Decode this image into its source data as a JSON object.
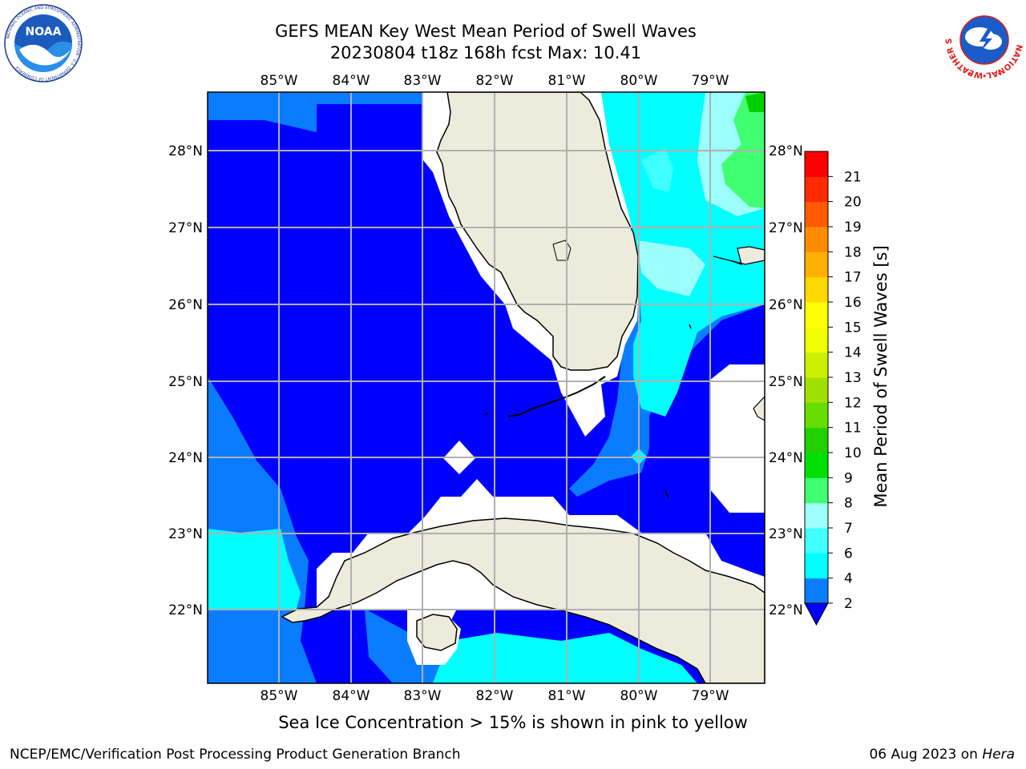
{
  "header": {
    "title_line1": "GEFS MEAN Key West Mean Period of Swell Waves",
    "title_line2": "20230804 t18z 168h fcst   Max: 10.41"
  },
  "logos": {
    "left": {
      "name": "NOAA",
      "text": "NOAA",
      "ring_text": "NATIONAL OCEANIC AND ATMOSPHERIC ADMINISTRATION · U.S. DEPARTMENT OF COMMERCE"
    },
    "right": {
      "name": "National Weather Service",
      "ring_text": "NATIONAL WEATHER SERVICE"
    }
  },
  "map": {
    "lon_labels": [
      "85°W",
      "84°W",
      "83°W",
      "82°W",
      "81°W",
      "80°W",
      "79°W"
    ],
    "lat_labels": [
      "28°N",
      "27°N",
      "26°N",
      "25°N",
      "24°N",
      "23°N",
      "22°N"
    ],
    "colors": {
      "land": "#ecebdc",
      "coast": "#000000",
      "grid": "#b0b0b0",
      "missing": "#ffffff"
    },
    "field_colors": {
      "2-4": "#0000ff",
      "4-6": "#0a7cff",
      "6-7": "#00ffff",
      "7-8": "#40ffff",
      "8-9": "#9dfffb",
      "9-10": "#40ff70"
    }
  },
  "colorbar": {
    "label": "Mean Period of Swell Waves [s]",
    "ticks": [
      "2",
      "4",
      "6",
      "7",
      "8",
      "9",
      "10",
      "11",
      "12",
      "13",
      "14",
      "15",
      "16",
      "17",
      "18",
      "19",
      "20",
      "21"
    ],
    "colors": [
      "#0a7cff",
      "#00ffff",
      "#40ffff",
      "#9dfffb",
      "#40ff70",
      "#00e000",
      "#20d000",
      "#66dd00",
      "#a0e000",
      "#ccf000",
      "#f0ff00",
      "#ffff00",
      "#ffd800",
      "#ffb000",
      "#ff8c00",
      "#ff5a00",
      "#ff2a00",
      "#ff0000"
    ],
    "extend_color": "#0000ff"
  },
  "caption": "Sea Ice Concentration > 15% is shown in pink to yellow",
  "footer": {
    "left": "NCEP/EMC/Verification Post Processing Product Generation Branch",
    "date": "06 Aug 2023 on ",
    "host": "Hera"
  }
}
